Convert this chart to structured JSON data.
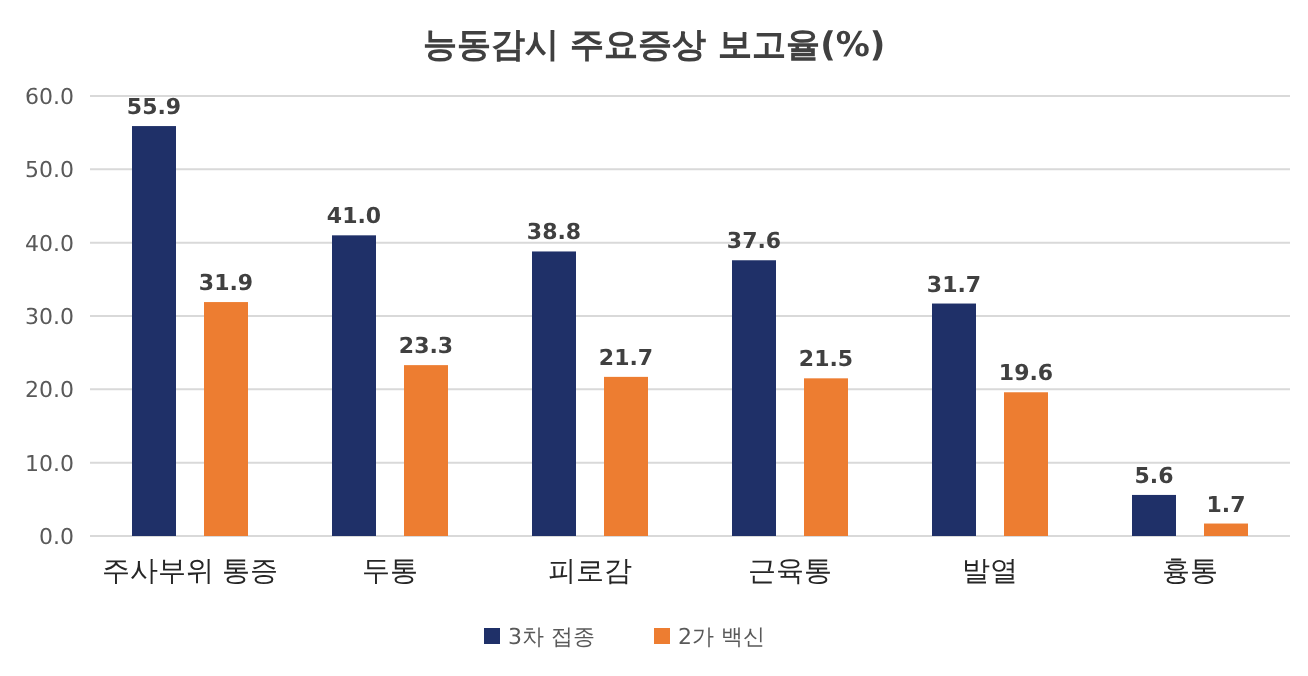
{
  "chart_data": {
    "type": "bar",
    "title": "능동감시 주요증상 보고율(%)",
    "categories": [
      "주사부위 통증",
      "두통",
      "피로감",
      "근육통",
      "발열",
      "흉통"
    ],
    "series": [
      {
        "name": "3차 접종",
        "color": "#1f3068",
        "values": [
          55.9,
          41.0,
          38.8,
          37.6,
          31.7,
          5.6
        ],
        "value_labels": [
          "55.9",
          "41.0",
          "38.8",
          "37.6",
          "31.7",
          "5.6"
        ]
      },
      {
        "name": "2가 백신",
        "color": "#ed7d31",
        "values": [
          31.9,
          23.3,
          21.7,
          21.5,
          19.6,
          1.7
        ],
        "value_labels": [
          "31.9",
          "23.3",
          "21.7",
          "21.5",
          "19.6",
          "1.7"
        ]
      }
    ],
    "ylim": [
      0,
      60
    ],
    "yticks": [
      {
        "value": 0,
        "label": "0.0"
      },
      {
        "value": 10,
        "label": "10.0"
      },
      {
        "value": 20,
        "label": "20.0"
      },
      {
        "value": 30,
        "label": "30.0"
      },
      {
        "value": 40,
        "label": "40.0"
      },
      {
        "value": 50,
        "label": "50.0"
      },
      {
        "value": 60,
        "label": "60.0"
      }
    ],
    "grid": "y",
    "legend": "bottom"
  }
}
